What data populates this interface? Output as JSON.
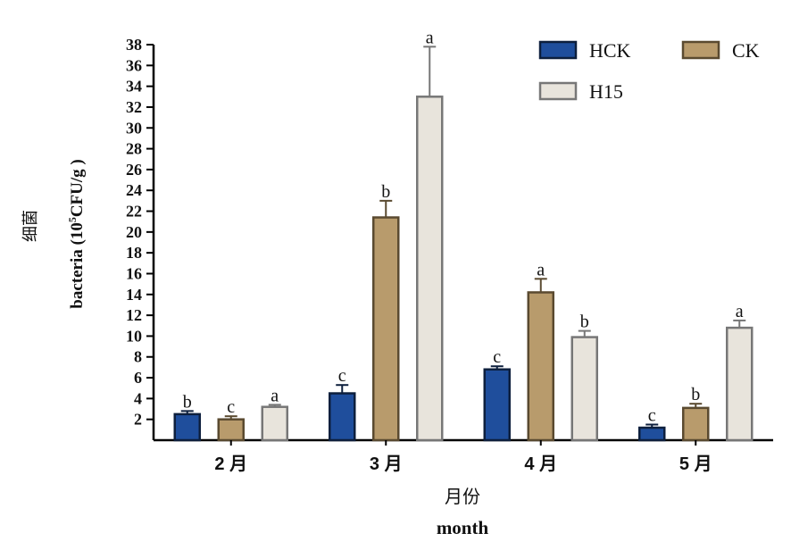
{
  "chart_data": {
    "type": "bar",
    "categories": [
      "2 月",
      "3 月",
      "4 月",
      "5 月"
    ],
    "series": [
      {
        "name": "HCK",
        "color": "#1f4e9c",
        "edge": "#0d1f3d",
        "values": [
          2.5,
          4.5,
          6.8,
          1.2
        ],
        "errors": [
          0.3,
          0.8,
          0.3,
          0.3
        ],
        "letters": [
          "b",
          "c",
          "c",
          "c"
        ]
      },
      {
        "name": "CK",
        "color": "#b89b6c",
        "edge": "#5a4a30",
        "values": [
          2.0,
          21.4,
          14.2,
          3.1
        ],
        "errors": [
          0.3,
          1.6,
          1.3,
          0.4
        ],
        "letters": [
          "c",
          "b",
          "a",
          "b"
        ]
      },
      {
        "name": "H15",
        "color": "#e8e4dc",
        "edge": "#777777",
        "values": [
          3.2,
          33.0,
          9.9,
          10.8
        ],
        "errors": [
          0.2,
          4.8,
          0.6,
          0.7
        ],
        "letters": [
          "a",
          "a",
          "b",
          "a"
        ]
      }
    ],
    "ylim": [
      0,
      38
    ],
    "yticks": [
      2,
      4,
      6,
      8,
      10,
      12,
      14,
      16,
      18,
      20,
      22,
      24,
      26,
      28,
      30,
      32,
      34,
      36,
      38
    ],
    "ylabel_cn": "细菌",
    "ylabel_en": "bacteria (10",
    "ylabel_sup": "5",
    "ylabel_unit": "CFU/g )",
    "xlabel_cn": "月份",
    "xlabel_en": "month",
    "legend_position": "top-right",
    "grid": false
  }
}
